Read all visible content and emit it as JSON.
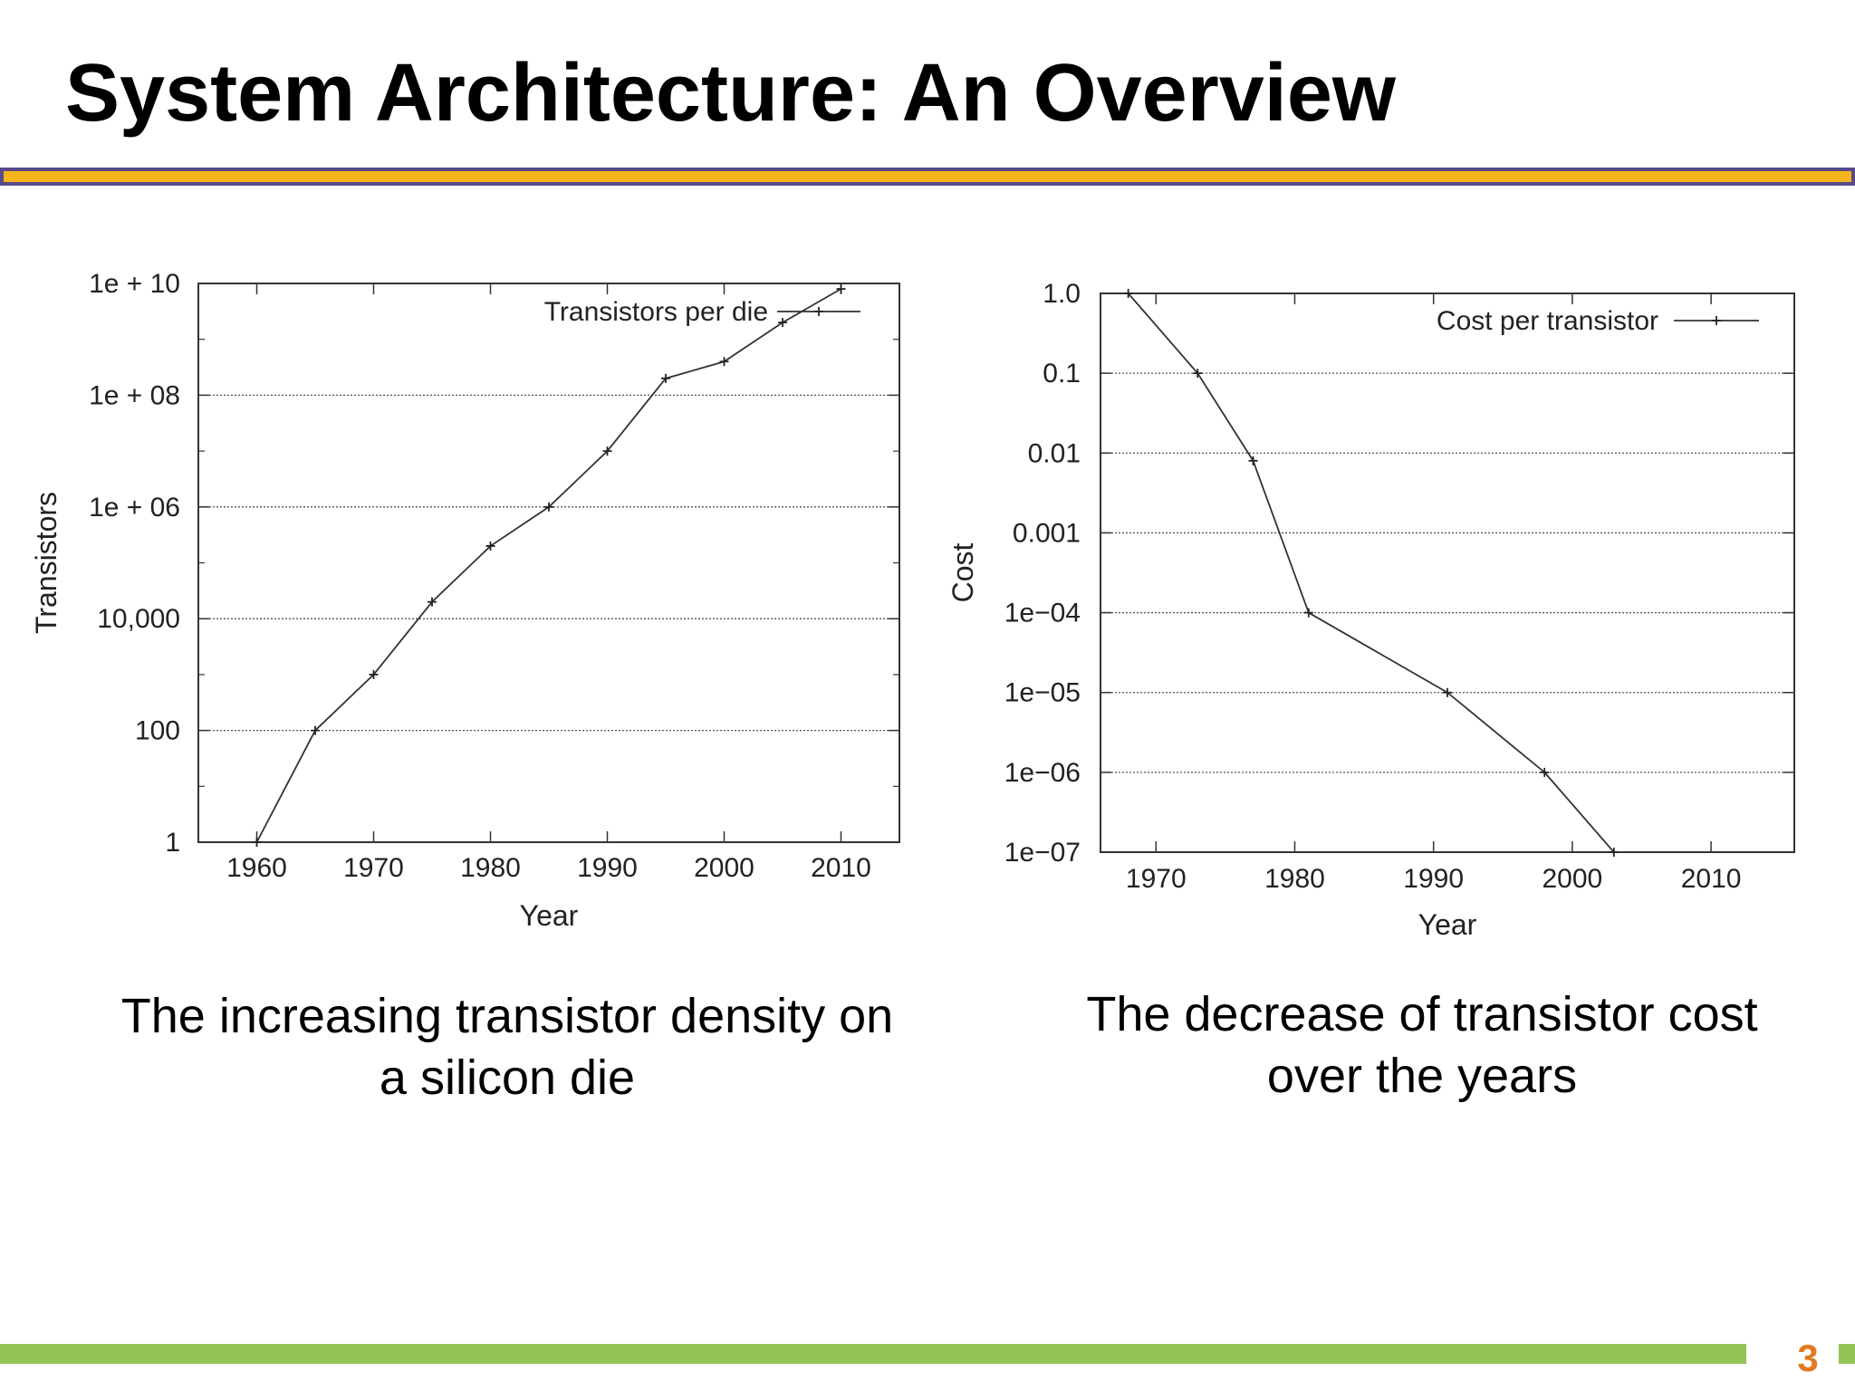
{
  "slide": {
    "title": "System Architecture: An Overview",
    "page_number": "3",
    "colors": {
      "rule_fill": "#f5b51a",
      "rule_border": "#5b4a8b",
      "footer": "#92c454",
      "page_number": "#e07b20"
    }
  },
  "captions": {
    "left": [
      "The increasing transistor density on",
      "a silicon die"
    ],
    "right": [
      "The decrease of transistor cost",
      "over the years"
    ]
  },
  "chart_data": [
    {
      "type": "line",
      "title": "",
      "xlabel": "Year",
      "ylabel": "Transistors",
      "yscale": "log",
      "xlim": [
        1955,
        2015
      ],
      "ylim_log10": [
        0,
        10
      ],
      "x_ticks": [
        1960,
        1970,
        1980,
        1990,
        2000,
        2010
      ],
      "x_tick_labels": [
        "1960",
        "1970",
        "1980",
        "1990",
        "2000",
        "2010"
      ],
      "y_ticks_log10": [
        0,
        2,
        4,
        6,
        8,
        10
      ],
      "y_tick_labels": [
        "1",
        "100",
        "10,000",
        "1e + 06",
        "1e + 08",
        "1e + 10"
      ],
      "grid": true,
      "legend_position": "top-right",
      "series": [
        {
          "name": "Transistors per die",
          "x": [
            1960,
            1965,
            1970,
            1975,
            1980,
            1985,
            1990,
            1995,
            2000,
            2005,
            2010
          ],
          "values": [
            1,
            100,
            1000,
            20000,
            200000,
            1000000,
            10000000,
            200000000,
            400000000,
            2000000000,
            8000000000
          ]
        }
      ]
    },
    {
      "type": "line",
      "title": "",
      "xlabel": "Year",
      "ylabel": "Cost",
      "yscale": "log",
      "xlim": [
        1966,
        2016
      ],
      "ylim_log10": [
        -7,
        0
      ],
      "x_ticks": [
        1970,
        1980,
        1990,
        2000,
        2010
      ],
      "x_tick_labels": [
        "1970",
        "1980",
        "1990",
        "2000",
        "2010"
      ],
      "y_ticks_log10": [
        -7,
        -6,
        -5,
        -4,
        -3,
        -2,
        -1,
        0
      ],
      "y_tick_labels": [
        "1e−07",
        "1e−06",
        "1e−05",
        "1e−04",
        "0.001",
        "0.01",
        "0.1",
        "1.0"
      ],
      "grid": true,
      "legend_position": "top-right",
      "series": [
        {
          "name": "Cost per transistor",
          "x": [
            1968,
            1973,
            1977,
            1981,
            1991,
            1998,
            2003
          ],
          "values": [
            1.0,
            0.1,
            0.008,
            0.0001,
            1e-05,
            1e-06,
            1e-07
          ]
        }
      ]
    }
  ]
}
